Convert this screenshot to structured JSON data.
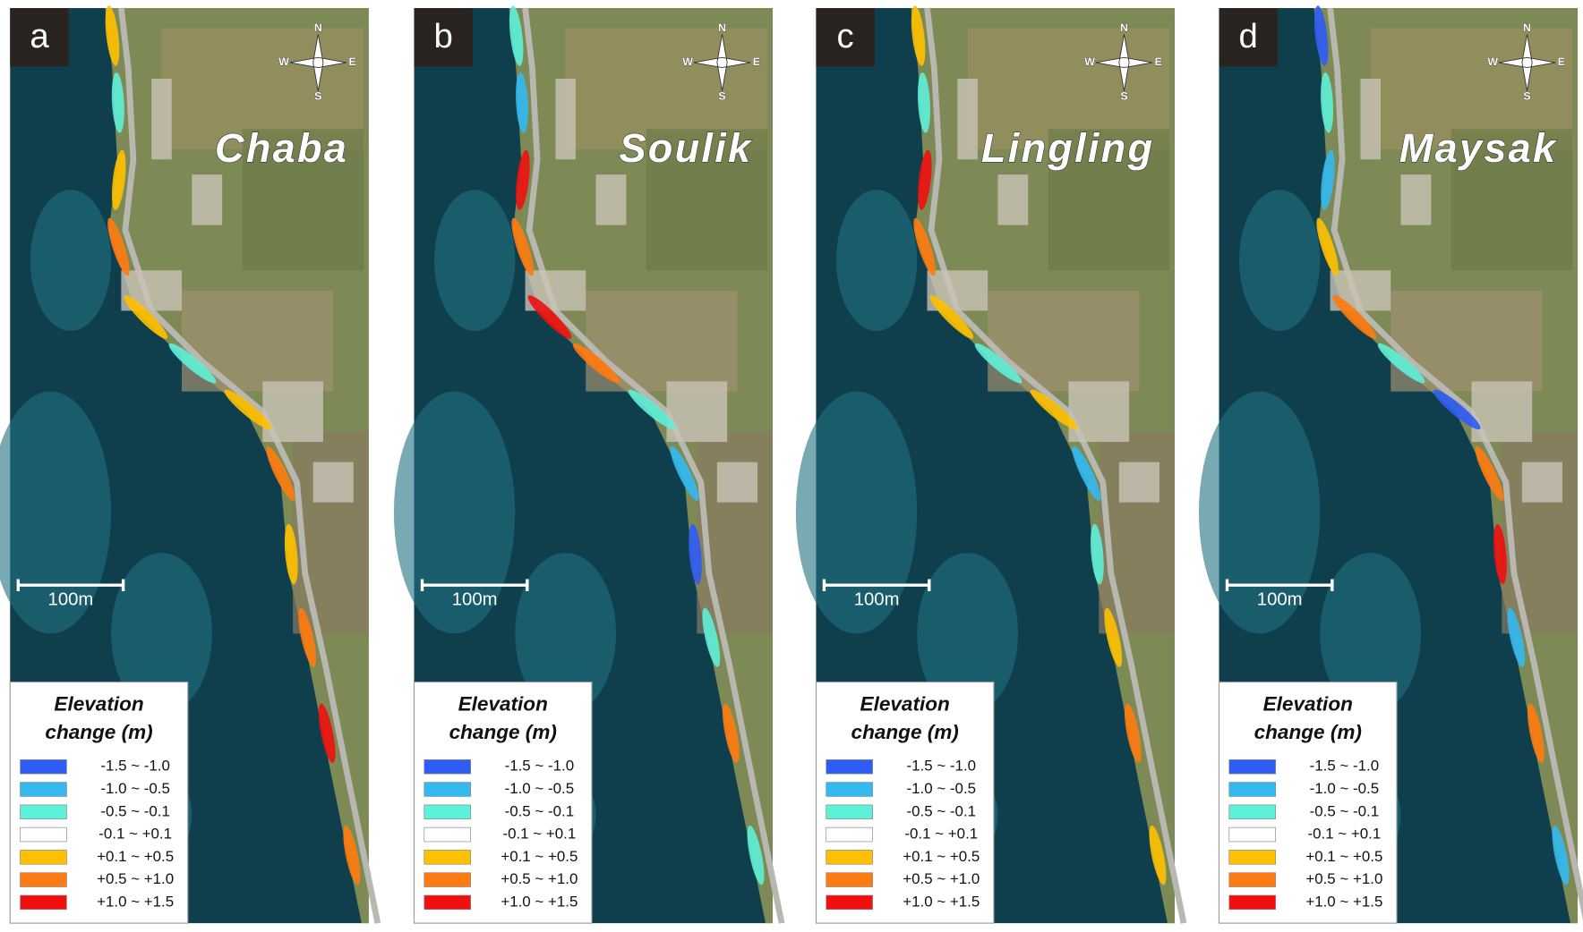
{
  "panels": [
    {
      "label": "a",
      "name": "Chaba",
      "scale_bar": "100m"
    },
    {
      "label": "b",
      "name": "Soulik",
      "scale_bar": "100m"
    },
    {
      "label": "c",
      "name": "Lingling",
      "scale_bar": "100m"
    },
    {
      "label": "d",
      "name": "Maysak",
      "scale_bar": "100m"
    }
  ],
  "compass": {
    "n": "N",
    "s": "S",
    "w": "W",
    "e": "E"
  },
  "legend": {
    "title": [
      "Elevation",
      "change (m)"
    ],
    "items": [
      {
        "label": "-1.5 ~ -1.0",
        "color": "#2f5cf5"
      },
      {
        "label": "-1.0 ~ -0.5",
        "color": "#33b8f0"
      },
      {
        "label": "-0.5 ~ -0.1",
        "color": "#5ef0d8"
      },
      {
        "label": "-0.1 ~ +0.1",
        "color": "#ffffff"
      },
      {
        "label": "+0.1 ~ +0.5",
        "color": "#ffc000"
      },
      {
        "label": "+0.5 ~ +1.0",
        "color": "#ff7a10"
      },
      {
        "label": "+1.0 ~ +1.5",
        "color": "#f01010"
      }
    ]
  }
}
